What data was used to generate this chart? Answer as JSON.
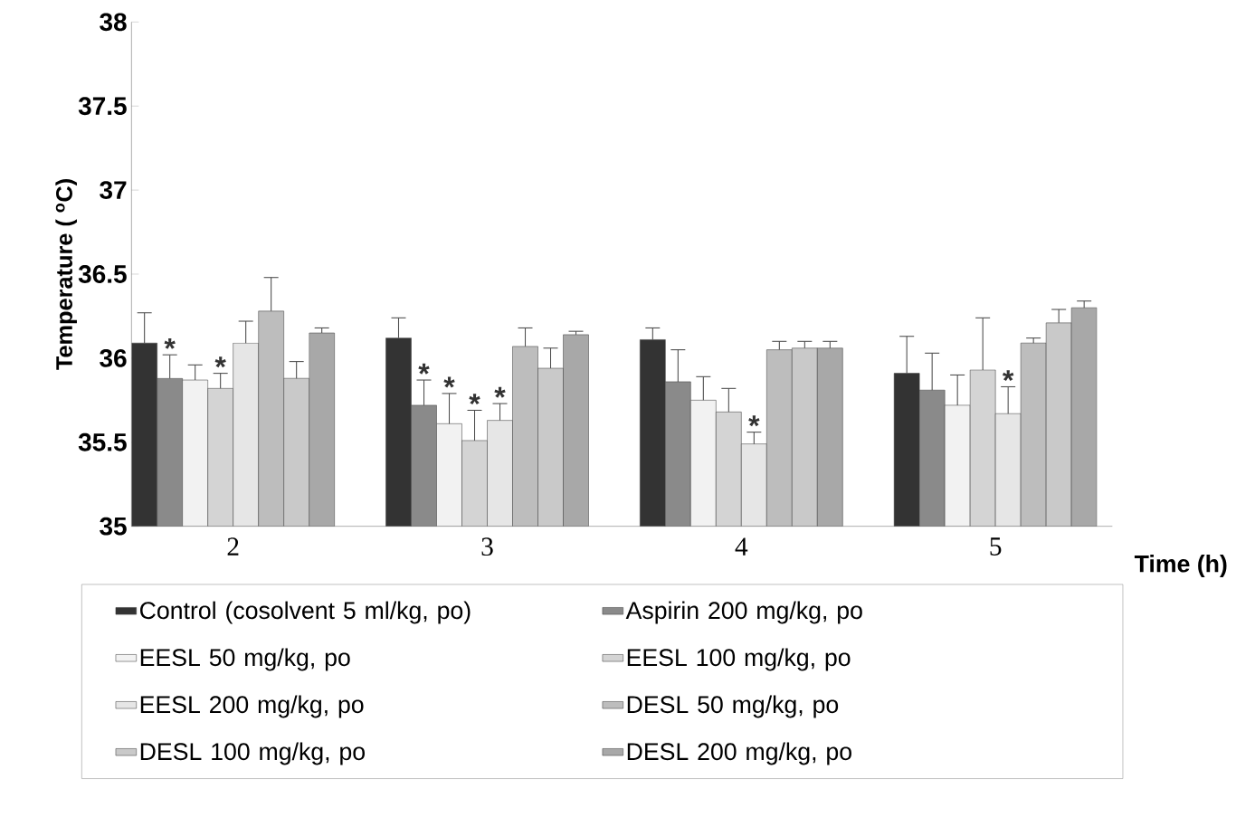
{
  "chart_data": {
    "type": "bar",
    "xlabel": "Time (h)",
    "ylabel": "Temperature ( $^{o}$C)",
    "categories": [
      "2",
      "3",
      "4",
      "5"
    ],
    "ylim": [
      35,
      38
    ],
    "yticks": [
      35,
      35.5,
      36,
      36.5,
      37,
      37.5,
      38
    ],
    "legend": "bottom",
    "series": [
      {
        "name": "Control (cosolvent 5 ml/kg, po)",
        "color": "#333333",
        "values": [
          36.09,
          36.12,
          36.11,
          35.91
        ],
        "errors": [
          0.18,
          0.12,
          0.07,
          0.22
        ]
      },
      {
        "name": "Aspirin 200 mg/kg, po",
        "color": "#8a8a8a",
        "values": [
          35.88,
          35.72,
          35.86,
          35.81
        ],
        "errors": [
          0.14,
          0.15,
          0.19,
          0.22
        ],
        "value_labels": [
          "*",
          "*",
          null,
          null
        ]
      },
      {
        "name": "EESL 50 mg/kg, po",
        "color": "#f2f2f2",
        "values": [
          35.87,
          35.61,
          35.75,
          35.72
        ],
        "errors": [
          0.09,
          0.18,
          0.14,
          0.18
        ],
        "value_labels": [
          null,
          "*",
          null,
          null
        ]
      },
      {
        "name": "EESL 100 mg/kg, po",
        "color": "#d4d4d4",
        "values": [
          35.82,
          35.51,
          35.68,
          35.93
        ],
        "errors": [
          0.09,
          0.18,
          0.14,
          0.31
        ],
        "value_labels": [
          "*",
          "*",
          null,
          null
        ]
      },
      {
        "name": "EESL 200 mg/kg, po",
        "color": "#e6e6e6",
        "values": [
          36.09,
          35.63,
          35.49,
          35.67
        ],
        "errors": [
          0.13,
          0.1,
          0.07,
          0.16
        ],
        "value_labels": [
          null,
          "*",
          "*",
          "*"
        ]
      },
      {
        "name": "DESL 50 mg/kg, po",
        "color": "#bdbdbd",
        "values": [
          36.28,
          36.07,
          36.05,
          36.09
        ],
        "errors": [
          0.2,
          0.11,
          0.05,
          0.03
        ]
      },
      {
        "name": "DESL 100 mg/kg, po",
        "color": "#c9c9c9",
        "values": [
          35.88,
          35.94,
          36.06,
          36.21
        ],
        "errors": [
          0.1,
          0.12,
          0.04,
          0.08
        ]
      },
      {
        "name": "DESL 200 mg/kg, po",
        "color": "#a8a8a8",
        "values": [
          36.15,
          36.14,
          36.06,
          36.3
        ],
        "errors": [
          0.03,
          0.02,
          0.04,
          0.04
        ]
      }
    ]
  }
}
